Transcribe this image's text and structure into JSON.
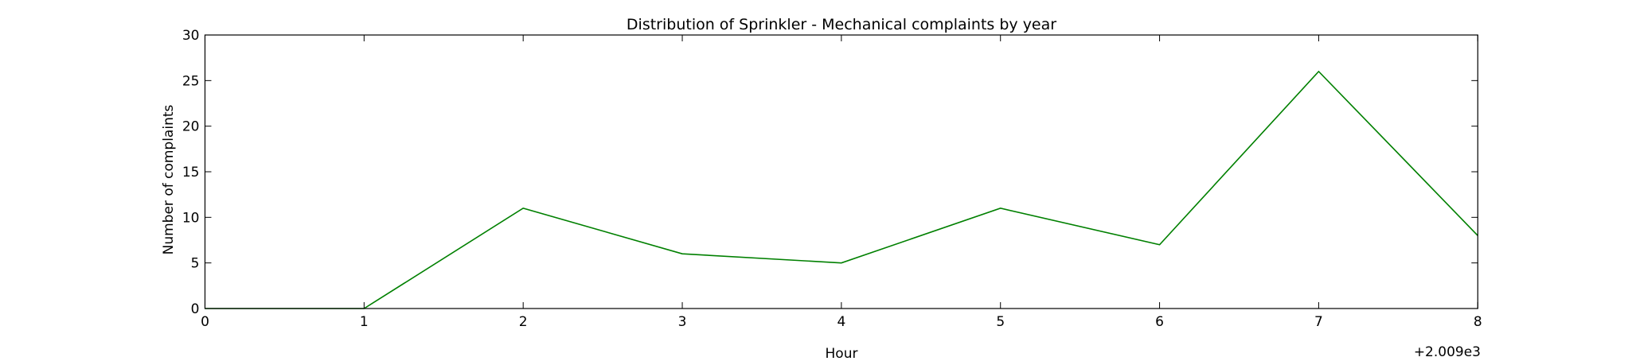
{
  "chart_data": {
    "type": "line",
    "title": "Distribution of  Sprinkler - Mechanical complaints by year",
    "xlabel": "Hour",
    "ylabel": "Number of complaints",
    "x_offset_label": "+2.009e3",
    "x": [
      2009,
      2010,
      2011,
      2012,
      2013,
      2014,
      2015,
      2016,
      2017
    ],
    "xlim": [
      2009,
      2017
    ],
    "ylim": [
      0,
      30
    ],
    "x_ticks": [
      0,
      1,
      2,
      3,
      4,
      5,
      6,
      7,
      8
    ],
    "y_ticks": [
      0,
      5,
      10,
      15,
      20,
      25,
      30
    ],
    "grid": false,
    "legend": "none",
    "series": [
      {
        "values": [
          0,
          0,
          11,
          6,
          5,
          11,
          7,
          26,
          8
        ],
        "color": "#008000"
      }
    ]
  }
}
